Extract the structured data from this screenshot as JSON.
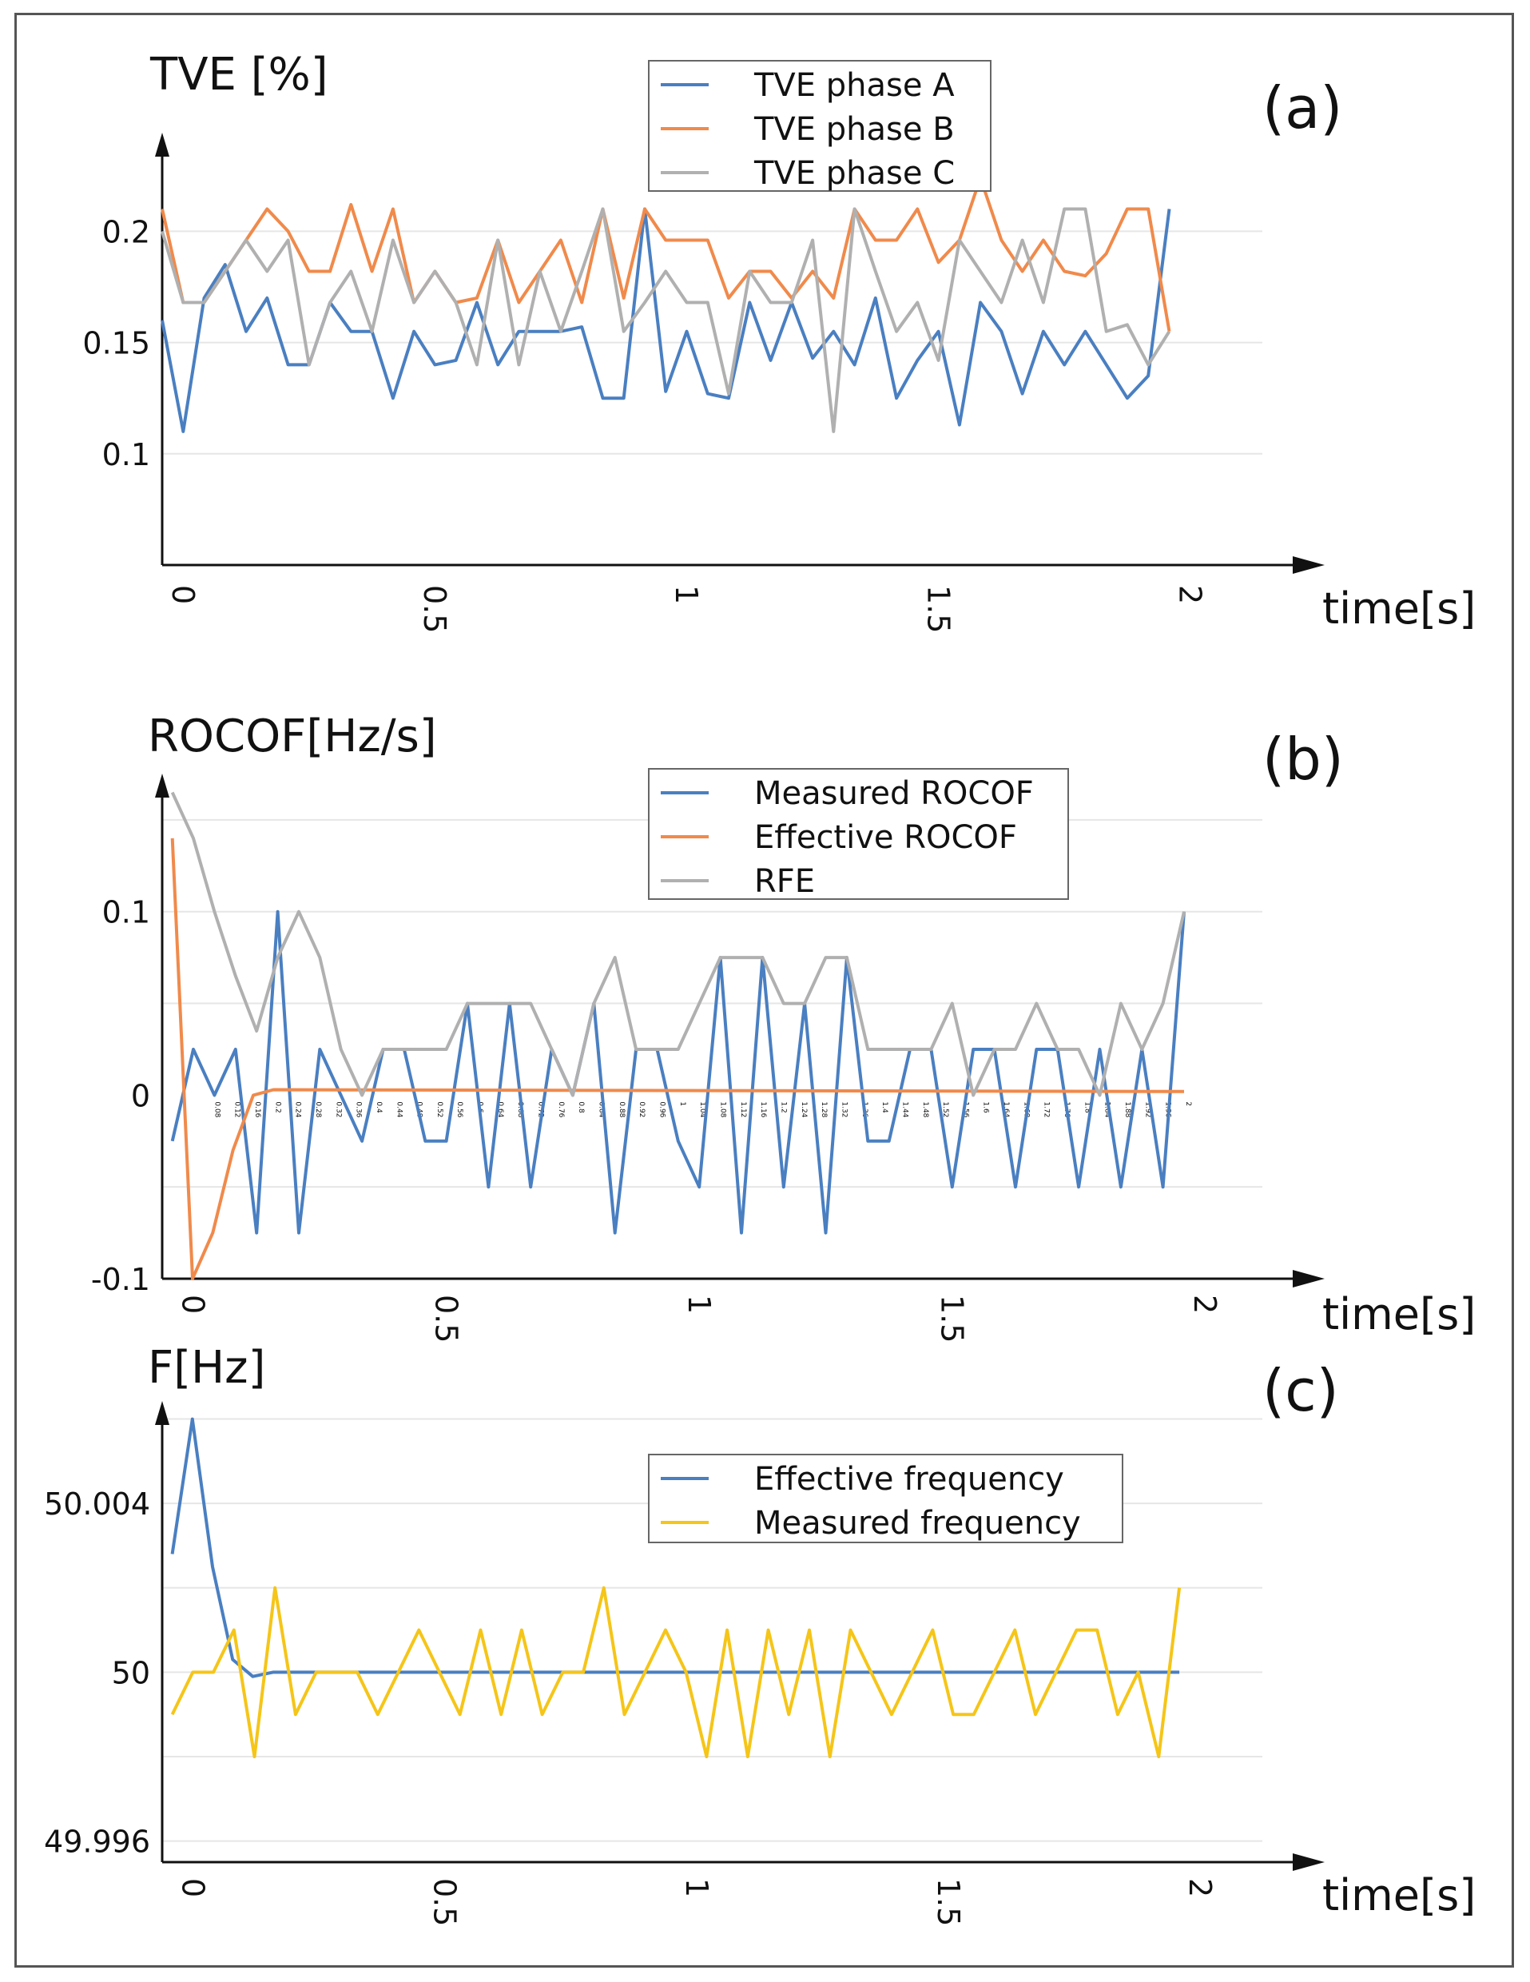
{
  "charts": [
    {
      "id": "a",
      "type": "line",
      "panel_label": "(a)",
      "ylabel": "TVE [%]",
      "xlabel": "time[s]",
      "ylim": [
        0.05,
        0.24
      ],
      "xlim": [
        0,
        2.15
      ],
      "yticks": [
        {
          "v": 0.2,
          "label": "0.2"
        },
        {
          "v": 0.15,
          "label": "0.15"
        },
        {
          "v": 0.1,
          "label": "0.1"
        }
      ],
      "grid": [
        0.1,
        0.15,
        0.2
      ],
      "xticks": [
        {
          "v": 0,
          "label": "0"
        },
        {
          "v": 0.5,
          "label": "0.5"
        },
        {
          "v": 1,
          "label": "1"
        },
        {
          "v": 1.5,
          "label": "1.5"
        },
        {
          "v": 2,
          "label": "2"
        }
      ],
      "legend": "top-center",
      "series": [
        {
          "name": "TVE phase A",
          "color": "#4a7fc1",
          "values": [
            0.16,
            0.11,
            0.17,
            0.185,
            0.155,
            0.17,
            0.14,
            0.14,
            0.168,
            0.155,
            0.155,
            0.125,
            0.155,
            0.14,
            0.142,
            0.168,
            0.14,
            0.155,
            0.155,
            0.155,
            0.157,
            0.125,
            0.125,
            0.21,
            0.128,
            0.155,
            0.127,
            0.125,
            0.168,
            0.142,
            0.168,
            0.143,
            0.155,
            0.14,
            0.17,
            0.125,
            0.142,
            0.155,
            0.113,
            0.168,
            0.155,
            0.127,
            0.155,
            0.14,
            0.155,
            0.14,
            0.125,
            0.135,
            0.21
          ]
        },
        {
          "name": "TVE phase B",
          "color": "#f08a4b",
          "values": [
            0.21,
            0.168,
            0.168,
            0.182,
            0.196,
            0.21,
            0.2,
            0.182,
            0.182,
            0.212,
            0.182,
            0.21,
            0.168,
            0.182,
            0.168,
            0.17,
            0.196,
            0.168,
            0.182,
            0.196,
            0.168,
            0.21,
            0.17,
            0.21,
            0.196,
            0.196,
            0.196,
            0.17,
            0.182,
            0.182,
            0.17,
            0.182,
            0.17,
            0.21,
            0.196,
            0.196,
            0.21,
            0.186,
            0.196,
            0.224,
            0.196,
            0.182,
            0.196,
            0.182,
            0.18,
            0.19,
            0.21,
            0.21,
            0.155
          ]
        },
        {
          "name": "TVE phase C",
          "color": "#b0b0b0",
          "values": [
            0.2,
            0.168,
            0.168,
            0.182,
            0.196,
            0.182,
            0.196,
            0.14,
            0.168,
            0.182,
            0.155,
            0.196,
            0.168,
            0.182,
            0.168,
            0.14,
            0.196,
            0.14,
            0.182,
            0.155,
            0.182,
            0.21,
            0.155,
            0.168,
            0.182,
            0.168,
            0.168,
            0.127,
            0.182,
            0.168,
            0.168,
            0.196,
            0.11,
            0.21,
            0.182,
            0.155,
            0.168,
            0.142,
            0.196,
            0.182,
            0.168,
            0.196,
            0.168,
            0.21,
            0.21,
            0.155,
            0.158,
            0.14,
            0.155
          ]
        }
      ]
    },
    {
      "id": "b",
      "type": "line",
      "panel_label": "(b)",
      "ylabel": "ROCOF[Hz/s]",
      "xlabel": "time[s]",
      "ylim": [
        -0.1,
        0.17
      ],
      "xlim": [
        -0.02,
        2.12
      ],
      "yticks": [
        {
          "v": 0.1,
          "label": "0.1"
        },
        {
          "v": 0,
          "label": "0"
        },
        {
          "v": -0.1,
          "label": "-0.1"
        }
      ],
      "grid": [
        -0.05,
        0.05,
        0.1,
        0.15
      ],
      "xticks": [
        {
          "v": 0,
          "label": "0"
        },
        {
          "v": 0.5,
          "label": "0.5"
        },
        {
          "v": 1,
          "label": "1"
        },
        {
          "v": 1.5,
          "label": "1.5"
        },
        {
          "v": 2,
          "label": "2"
        }
      ],
      "minor_ticks": [
        "0.08",
        "0.12",
        "0.16",
        "0.2",
        "0.24",
        "0.28",
        "0.32",
        "0.36",
        "0.4",
        "0.44",
        "0.48",
        "0.52",
        "0.56",
        "0.6",
        "0.64",
        "0.68",
        "0.72",
        "0.76",
        "0.8",
        "0.84",
        "0.88",
        "0.92",
        "0.96",
        "1",
        "1.04",
        "1.08",
        "1.12",
        "1.16",
        "1.2",
        "1.24",
        "1.28",
        "1.32",
        "1.36",
        "1.4",
        "1.44",
        "1.48",
        "1.52",
        "1.56",
        "1.6",
        "1.64",
        "1.68",
        "1.72",
        "1.76",
        "1.8",
        "1.84",
        "1.88",
        "1.92",
        "1.96",
        "2"
      ],
      "legend": "top-center",
      "series": [
        {
          "name": "Measured ROCOF",
          "color": "#4a7fc1",
          "values": [
            -0.025,
            0.025,
            0,
            0.025,
            -0.075,
            0.1,
            -0.075,
            0.025,
            0,
            -0.025,
            0.025,
            0.025,
            -0.025,
            -0.025,
            0.05,
            -0.05,
            0.05,
            -0.05,
            0.025,
            0,
            0.05,
            -0.075,
            0.025,
            0.025,
            -0.025,
            -0.05,
            0.075,
            -0.075,
            0.075,
            -0.05,
            0.05,
            -0.075,
            0.075,
            -0.025,
            -0.025,
            0.025,
            0.025,
            -0.05,
            0.025,
            0.025,
            -0.05,
            0.025,
            0.025,
            -0.05,
            0.025,
            -0.05,
            0.025,
            -0.05,
            0.1
          ]
        },
        {
          "name": "Effective ROCOF",
          "color": "#f08a4b",
          "x": [
            0,
            0.04,
            0.08,
            0.12,
            0.16,
            0.2,
            2
          ],
          "values": [
            0.14,
            -0.1,
            -0.075,
            -0.03,
            0,
            0.003,
            0.002
          ]
        },
        {
          "name": "RFE",
          "color": "#b0b0b0",
          "values": [
            0.165,
            0.14,
            0.1,
            0.065,
            0.035,
            0.075,
            0.1,
            0.075,
            0.025,
            0,
            0.025,
            0.025,
            0.025,
            0.025,
            0.05,
            0.05,
            0.05,
            0.05,
            0.025,
            0,
            0.05,
            0.075,
            0.025,
            0.025,
            0.025,
            0.05,
            0.075,
            0.075,
            0.075,
            0.05,
            0.05,
            0.075,
            0.075,
            0.025,
            0.025,
            0.025,
            0.025,
            0.05,
            0,
            0.025,
            0.025,
            0.05,
            0.025,
            0.025,
            0,
            0.05,
            0.025,
            0.05,
            0.1
          ]
        }
      ]
    },
    {
      "id": "c",
      "type": "line",
      "panel_label": "(c)",
      "ylabel": "F[Hz]",
      "xlabel": "time[s]",
      "ylim": [
        49.9955,
        50.0062
      ],
      "xlim": [
        -0.02,
        2.13
      ],
      "yticks": [
        {
          "v": 50.004,
          "label": "50.004"
        },
        {
          "v": 50,
          "label": "50"
        },
        {
          "v": 49.996,
          "label": "49.996"
        }
      ],
      "grid": [
        49.996,
        49.998,
        50,
        50.002,
        50.004,
        50.006
      ],
      "xticks": [
        {
          "v": 0,
          "label": "0"
        },
        {
          "v": 0.5,
          "label": "0.5"
        },
        {
          "v": 1,
          "label": "1"
        },
        {
          "v": 1.5,
          "label": "1.5"
        },
        {
          "v": 2,
          "label": "2"
        }
      ],
      "legend": "top-center",
      "series": [
        {
          "name": "Effective frequency",
          "color": "#4a7fc1",
          "x": [
            0,
            0.04,
            0.08,
            0.12,
            0.16,
            0.2,
            2
          ],
          "values": [
            50.0028,
            50.006,
            50.0025,
            50.0003,
            49.9999,
            50,
            50
          ]
        },
        {
          "name": "Measured frequency",
          "color": "#f5c518",
          "values": [
            49.999,
            50,
            50,
            50.001,
            49.998,
            50.002,
            49.999,
            50,
            50,
            50,
            49.999,
            50,
            50.001,
            50,
            49.999,
            50.001,
            49.999,
            50.001,
            49.999,
            50,
            50,
            50.002,
            49.999,
            50,
            50.001,
            50,
            49.998,
            50.001,
            49.998,
            50.001,
            49.999,
            50.001,
            49.998,
            50.001,
            50,
            49.999,
            50,
            50.001,
            49.999,
            49.999,
            50,
            50.001,
            49.999,
            50,
            50.001,
            50.001,
            49.999,
            50,
            49.998,
            50.002
          ]
        }
      ]
    }
  ]
}
